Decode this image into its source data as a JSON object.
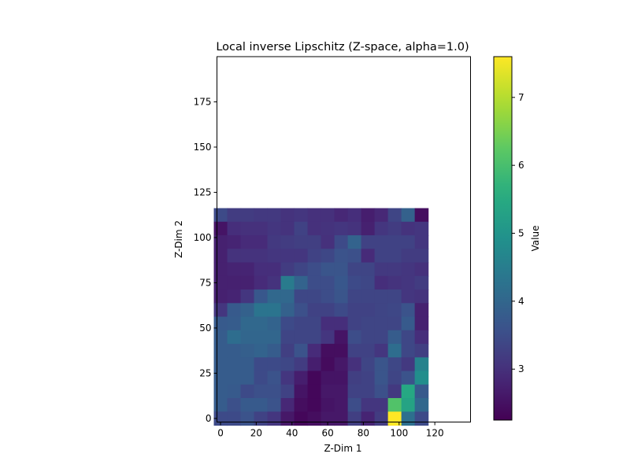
{
  "chart_data": {
    "type": "heatmap",
    "title": "Local inverse Lipschitz (Z-space, alpha=1.0)",
    "xlabel": "Z-Dim 1",
    "ylabel": "Z-Dim 2",
    "colorbar_label": "Value",
    "colormap": "viridis",
    "xlim": [
      -2,
      140
    ],
    "ylim": [
      -2,
      200
    ],
    "cell_size": 7.5,
    "value_range": [
      2.25,
      7.6
    ],
    "xticks": [
      0,
      20,
      40,
      60,
      80,
      100,
      120
    ],
    "yticks": [
      0,
      25,
      50,
      75,
      100,
      125,
      150,
      175
    ],
    "colorbar_ticks": [
      3,
      4,
      5,
      6,
      7
    ],
    "grid": false,
    "rows_top_to_bottom": [
      [
        3.45,
        3.2,
        3.2,
        3.15,
        3.15,
        3.05,
        3.1,
        3.0,
        3.0,
        2.85,
        2.95,
        2.7,
        2.85,
        3.35,
        3.9,
        2.45
      ],
      [
        2.55,
        2.95,
        3.0,
        3.0,
        3.1,
        3.05,
        3.3,
        3.0,
        3.05,
        3.1,
        3.05,
        2.75,
        3.1,
        3.2,
        3.05,
        3.1
      ],
      [
        2.75,
        2.8,
        2.9,
        2.9,
        3.15,
        3.2,
        3.25,
        3.25,
        3.0,
        3.45,
        3.95,
        3.3,
        3.3,
        3.3,
        3.3,
        3.1
      ],
      [
        2.75,
        3.05,
        3.05,
        3.05,
        3.1,
        3.1,
        3.1,
        3.3,
        3.4,
        3.6,
        3.55,
        2.9,
        3.3,
        3.3,
        3.2,
        3.2
      ],
      [
        2.75,
        2.8,
        2.8,
        2.95,
        2.95,
        3.2,
        3.35,
        3.5,
        3.65,
        3.65,
        3.35,
        3.35,
        3.15,
        3.15,
        3.1,
        3.0
      ],
      [
        2.75,
        2.75,
        2.75,
        2.9,
        3.05,
        4.45,
        3.95,
        3.5,
        3.5,
        3.7,
        3.45,
        3.4,
        2.95,
        3.05,
        3.1,
        3.2
      ],
      [
        2.75,
        2.8,
        3.1,
        3.7,
        4.05,
        4.05,
        3.4,
        3.4,
        3.5,
        3.65,
        3.35,
        3.35,
        3.35,
        3.35,
        3.1,
        3.05
      ],
      [
        3.1,
        3.75,
        3.9,
        4.3,
        4.3,
        3.9,
        3.55,
        3.3,
        3.3,
        3.45,
        3.3,
        3.3,
        3.35,
        3.4,
        3.6,
        2.75
      ],
      [
        3.75,
        3.8,
        4.05,
        4.05,
        3.95,
        3.45,
        3.35,
        3.35,
        2.95,
        2.95,
        3.3,
        3.35,
        3.35,
        3.35,
        3.75,
        2.75
      ],
      [
        3.8,
        4.15,
        4.0,
        4.0,
        4.0,
        3.35,
        3.35,
        3.35,
        3.1,
        2.55,
        3.5,
        3.35,
        3.35,
        3.8,
        3.4,
        2.95
      ],
      [
        3.8,
        3.8,
        3.85,
        3.95,
        3.8,
        3.25,
        3.6,
        2.9,
        2.45,
        2.45,
        3.3,
        3.3,
        3.1,
        4.15,
        3.4,
        3.25
      ],
      [
        3.8,
        3.8,
        3.8,
        3.45,
        3.45,
        3.4,
        3.2,
        2.7,
        2.4,
        2.6,
        3.0,
        3.35,
        3.65,
        3.4,
        3.15,
        4.6
      ],
      [
        3.8,
        3.8,
        3.8,
        3.45,
        3.6,
        3.1,
        2.7,
        2.35,
        2.55,
        2.55,
        3.25,
        3.3,
        3.65,
        3.35,
        3.6,
        4.85
      ],
      [
        3.8,
        3.75,
        3.45,
        3.55,
        3.55,
        3.3,
        2.55,
        2.35,
        2.6,
        2.6,
        3.3,
        3.3,
        3.55,
        3.15,
        5.45,
        3.75
      ],
      [
        3.8,
        3.55,
        3.75,
        3.75,
        3.6,
        2.85,
        2.45,
        2.35,
        2.55,
        2.6,
        3.5,
        3.1,
        3.1,
        6.1,
        5.35,
        4.05
      ],
      [
        3.45,
        3.45,
        3.6,
        3.3,
        3.1,
        2.6,
        2.35,
        2.45,
        2.6,
        2.6,
        3.25,
        2.8,
        3.2,
        7.6,
        4.2,
        3.45
      ]
    ]
  }
}
